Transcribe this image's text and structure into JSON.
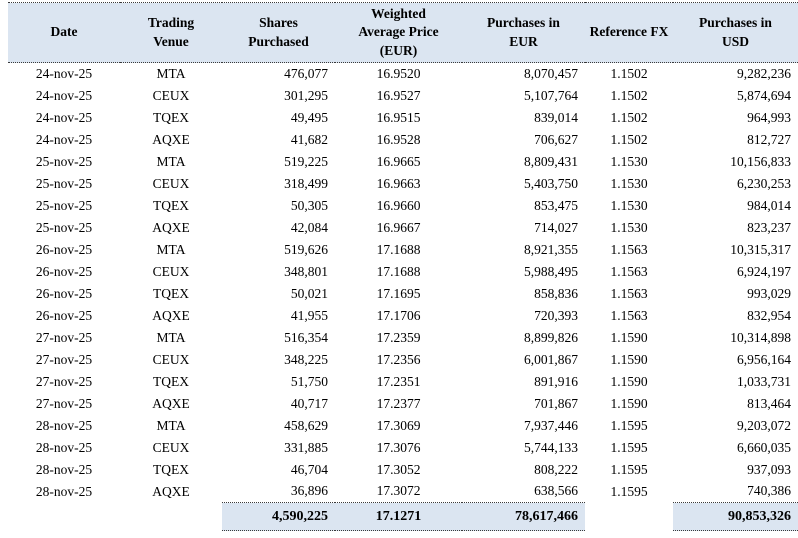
{
  "chart_data": {
    "type": "table",
    "title": "",
    "columns": [
      "Date",
      "Trading Venue",
      "Shares Purchased",
      "Weighted Average Price (EUR)",
      "Purchases in EUR",
      "Reference FX",
      "Purchases in USD"
    ],
    "rows": [
      [
        "24-nov-25",
        "MTA",
        "476,077",
        "16.9520",
        "8,070,457",
        "1.1502",
        "9,282,236"
      ],
      [
        "24-nov-25",
        "CEUX",
        "301,295",
        "16.9527",
        "5,107,764",
        "1.1502",
        "5,874,694"
      ],
      [
        "24-nov-25",
        "TQEX",
        "49,495",
        "16.9515",
        "839,014",
        "1.1502",
        "964,993"
      ],
      [
        "24-nov-25",
        "AQXE",
        "41,682",
        "16.9528",
        "706,627",
        "1.1502",
        "812,727"
      ],
      [
        "25-nov-25",
        "MTA",
        "519,225",
        "16.9665",
        "8,809,431",
        "1.1530",
        "10,156,833"
      ],
      [
        "25-nov-25",
        "CEUX",
        "318,499",
        "16.9663",
        "5,403,750",
        "1.1530",
        "6,230,253"
      ],
      [
        "25-nov-25",
        "TQEX",
        "50,305",
        "16.9660",
        "853,475",
        "1.1530",
        "984,014"
      ],
      [
        "25-nov-25",
        "AQXE",
        "42,084",
        "16.9667",
        "714,027",
        "1.1530",
        "823,237"
      ],
      [
        "26-nov-25",
        "MTA",
        "519,626",
        "17.1688",
        "8,921,355",
        "1.1563",
        "10,315,317"
      ],
      [
        "26-nov-25",
        "CEUX",
        "348,801",
        "17.1688",
        "5,988,495",
        "1.1563",
        "6,924,197"
      ],
      [
        "26-nov-25",
        "TQEX",
        "50,021",
        "17.1695",
        "858,836",
        "1.1563",
        "993,029"
      ],
      [
        "26-nov-25",
        "AQXE",
        "41,955",
        "17.1706",
        "720,393",
        "1.1563",
        "832,954"
      ],
      [
        "27-nov-25",
        "MTA",
        "516,354",
        "17.2359",
        "8,899,826",
        "1.1590",
        "10,314,898"
      ],
      [
        "27-nov-25",
        "CEUX",
        "348,225",
        "17.2356",
        "6,001,867",
        "1.1590",
        "6,956,164"
      ],
      [
        "27-nov-25",
        "TQEX",
        "51,750",
        "17.2351",
        "891,916",
        "1.1590",
        "1,033,731"
      ],
      [
        "27-nov-25",
        "AQXE",
        "40,717",
        "17.2377",
        "701,867",
        "1.1590",
        "813,464"
      ],
      [
        "28-nov-25",
        "MTA",
        "458,629",
        "17.3069",
        "7,937,446",
        "1.1595",
        "9,203,072"
      ],
      [
        "28-nov-25",
        "CEUX",
        "331,885",
        "17.3076",
        "5,744,133",
        "1.1595",
        "6,660,035"
      ],
      [
        "28-nov-25",
        "TQEX",
        "46,704",
        "17.3052",
        "808,222",
        "1.1595",
        "937,093"
      ],
      [
        "28-nov-25",
        "AQXE",
        "36,896",
        "17.3072",
        "638,566",
        "1.1595",
        "740,386"
      ]
    ],
    "totals": [
      "",
      "",
      "4,590,225",
      "17.1271",
      "78,617,466",
      "",
      "90,853,326"
    ],
    "total_highlight_columns": [
      2,
      3,
      4,
      6
    ],
    "colors": {
      "header_bg": "#dbe5f1",
      "rule_line": "#3a3a3a",
      "text": "#000000"
    },
    "layout": {
      "grid": "off",
      "header_rule": "dotted",
      "totals_rule": "dotted"
    }
  }
}
